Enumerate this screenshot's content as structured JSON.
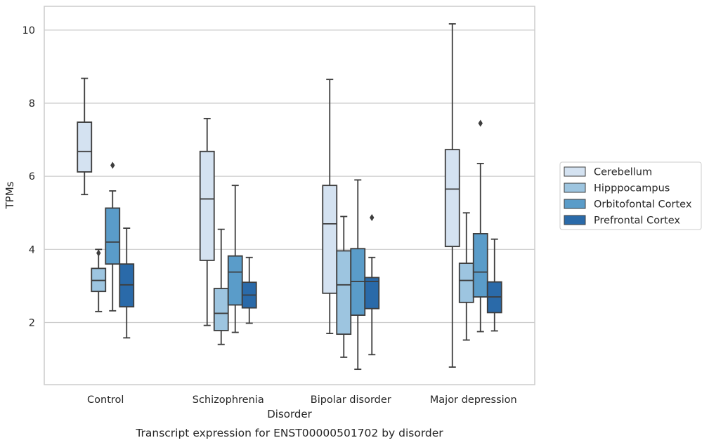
{
  "chart_data": {
    "type": "box",
    "caption": "Transcript expression for ENST00000501702 by disorder",
    "xlabel": "Disorder",
    "ylabel": "TPMs",
    "categories": [
      "Control",
      "Schizophrenia",
      "Bipolar disorder",
      "Major depression"
    ],
    "ylim": [
      0.3,
      10.65
    ],
    "yticks": [
      2,
      4,
      6,
      8,
      10
    ],
    "grid": "horizontal",
    "legend_position": "right",
    "series": [
      {
        "name": "Cerebellum",
        "color": "#d4e2f1",
        "boxes": [
          {
            "whislo": 5.5,
            "q1": 6.12,
            "med": 6.68,
            "q3": 7.48,
            "whishi": 8.68,
            "fliers": []
          },
          {
            "whislo": 1.92,
            "q1": 3.7,
            "med": 5.38,
            "q3": 6.68,
            "whishi": 7.58,
            "fliers": []
          },
          {
            "whislo": 1.7,
            "q1": 2.8,
            "med": 4.7,
            "q3": 5.75,
            "whishi": 8.65,
            "fliers": []
          },
          {
            "whislo": 0.78,
            "q1": 4.08,
            "med": 5.65,
            "q3": 6.73,
            "whishi": 10.17,
            "fliers": []
          }
        ]
      },
      {
        "name": "Hipppocampus",
        "color": "#9dc5e0",
        "boxes": [
          {
            "whislo": 2.3,
            "q1": 2.85,
            "med": 3.15,
            "q3": 3.48,
            "whishi": 4.0,
            "fliers": [
              3.9
            ]
          },
          {
            "whislo": 1.4,
            "q1": 1.78,
            "med": 2.25,
            "q3": 2.93,
            "whishi": 4.55,
            "fliers": []
          },
          {
            "whislo": 1.05,
            "q1": 1.68,
            "med": 3.03,
            "q3": 3.96,
            "whishi": 4.9,
            "fliers": []
          },
          {
            "whislo": 1.52,
            "q1": 2.55,
            "med": 3.15,
            "q3": 3.62,
            "whishi": 5.0,
            "fliers": []
          }
        ]
      },
      {
        "name": "Orbitofontal Cortex",
        "color": "#5a9cc9",
        "boxes": [
          {
            "whislo": 2.32,
            "q1": 3.6,
            "med": 4.2,
            "q3": 5.13,
            "whishi": 5.6,
            "fliers": [
              6.3
            ]
          },
          {
            "whislo": 1.73,
            "q1": 2.48,
            "med": 3.38,
            "q3": 3.82,
            "whishi": 5.75,
            "fliers": []
          },
          {
            "whislo": 0.72,
            "q1": 2.2,
            "med": 3.12,
            "q3": 4.02,
            "whishi": 5.9,
            "fliers": []
          },
          {
            "whislo": 1.75,
            "q1": 2.7,
            "med": 3.38,
            "q3": 4.43,
            "whishi": 6.35,
            "fliers": [
              7.45
            ]
          }
        ]
      },
      {
        "name": "Prefrontal Cortex",
        "color": "#2a6aa9",
        "boxes": [
          {
            "whislo": 1.58,
            "q1": 2.43,
            "med": 3.03,
            "q3": 3.6,
            "whishi": 4.58,
            "fliers": []
          },
          {
            "whislo": 1.98,
            "q1": 2.4,
            "med": 2.75,
            "q3": 3.1,
            "whishi": 3.78,
            "fliers": []
          },
          {
            "whislo": 1.12,
            "q1": 2.38,
            "med": 3.12,
            "q3": 3.23,
            "whishi": 3.78,
            "fliers": [
              4.87
            ]
          },
          {
            "whislo": 1.77,
            "q1": 2.27,
            "med": 2.7,
            "q3": 3.11,
            "whishi": 4.28,
            "fliers": []
          }
        ]
      }
    ]
  }
}
